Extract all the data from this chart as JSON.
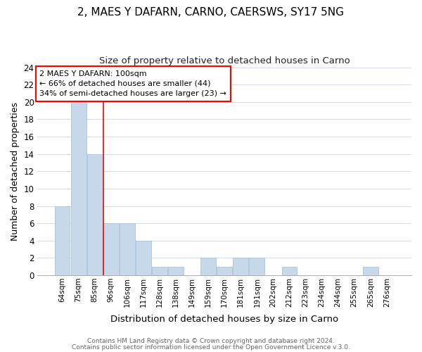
{
  "title": "2, MAES Y DAFARN, CARNO, CAERSWS, SY17 5NG",
  "subtitle": "Size of property relative to detached houses in Carno",
  "xlabel": "Distribution of detached houses by size in Carno",
  "ylabel": "Number of detached properties",
  "bar_color": "#c8d8eb",
  "bar_edge_color": "#b0c8e0",
  "bins": [
    "64sqm",
    "75sqm",
    "85sqm",
    "96sqm",
    "106sqm",
    "117sqm",
    "128sqm",
    "138sqm",
    "149sqm",
    "159sqm",
    "170sqm",
    "181sqm",
    "191sqm",
    "202sqm",
    "212sqm",
    "223sqm",
    "234sqm",
    "244sqm",
    "255sqm",
    "265sqm",
    "276sqm"
  ],
  "counts": [
    8,
    20,
    14,
    6,
    6,
    4,
    1,
    1,
    0,
    2,
    1,
    2,
    2,
    0,
    1,
    0,
    0,
    0,
    0,
    1,
    0
  ],
  "ylim": [
    0,
    24
  ],
  "yticks": [
    0,
    2,
    4,
    6,
    8,
    10,
    12,
    14,
    16,
    18,
    20,
    22,
    24
  ],
  "annotation_text_line1": "2 MAES Y DAFARN: 100sqm",
  "annotation_text_line2": "← 66% of detached houses are smaller (44)",
  "annotation_text_line3": "34% of semi-detached houses are larger (23) →",
  "red_line_bin_index": 3,
  "footer_line1": "Contains HM Land Registry data © Crown copyright and database right 2024.",
  "footer_line2": "Contains public sector information licensed under the Open Government Licence v.3.0.",
  "background_color": "#ffffff",
  "grid_color": "#d0dce8"
}
